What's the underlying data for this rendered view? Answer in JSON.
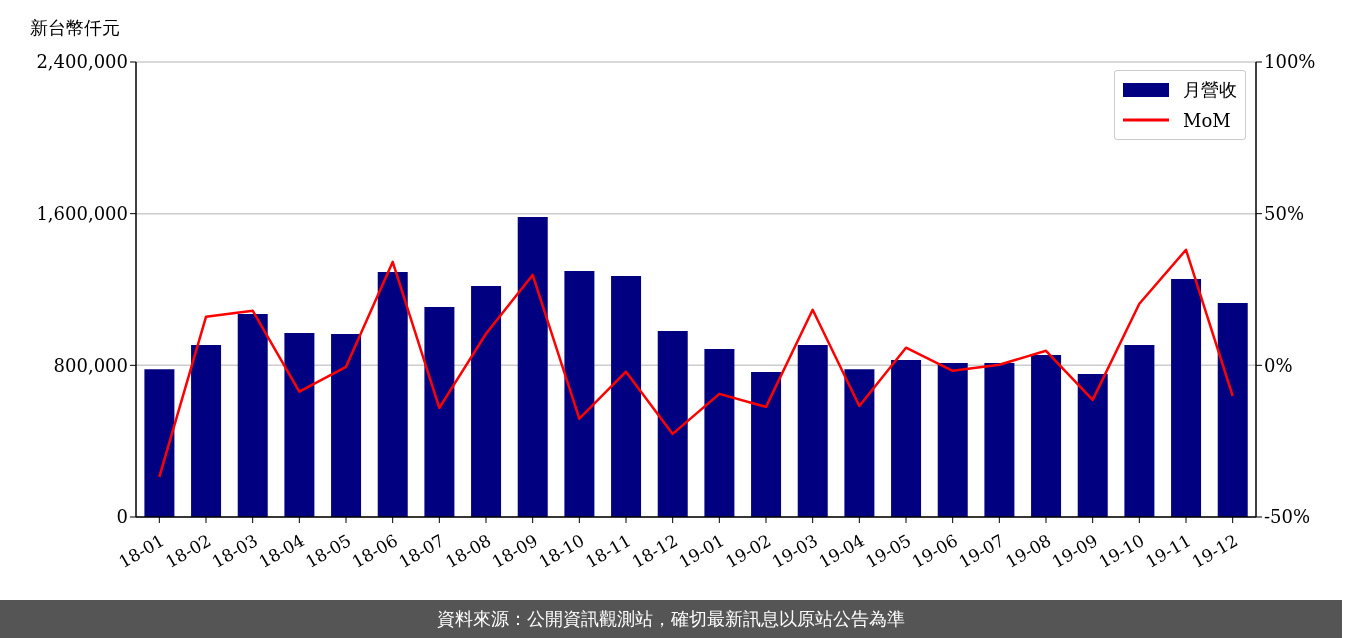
{
  "chart_data": {
    "type": "bar",
    "ylabel": "新台幣仟元",
    "categories": [
      "18-01",
      "18-02",
      "18-03",
      "18-04",
      "18-05",
      "18-06",
      "18-07",
      "18-08",
      "18-09",
      "18-10",
      "18-11",
      "18-12",
      "19-01",
      "19-02",
      "19-03",
      "19-04",
      "19-05",
      "19-06",
      "19-07",
      "19-08",
      "19-09",
      "19-10",
      "19-11",
      "19-12"
    ],
    "series": [
      {
        "name": "月營收",
        "color": "#000080",
        "values": [
          780000,
          907000,
          1071000,
          971000,
          965000,
          1292000,
          1108000,
          1218000,
          1583000,
          1298000,
          1271000,
          981000,
          886000,
          765000,
          907000,
          780000,
          828000,
          812000,
          812000,
          855000,
          754000,
          907000,
          1255000,
          1129000
        ]
      },
      {
        "name": "MoM",
        "type": "line",
        "axis": "y2",
        "color": "#ff0000",
        "values": [
          -36.8,
          16.0,
          18.0,
          -8.7,
          -0.5,
          34.1,
          -14.0,
          10.4,
          29.8,
          -17.6,
          -2.1,
          -22.6,
          -9.4,
          -13.7,
          18.3,
          -13.4,
          5.8,
          -1.8,
          0.2,
          4.8,
          -11.4,
          20.3,
          38.1,
          -10.1
        ]
      }
    ],
    "ylim": [
      0,
      2400000
    ],
    "yticks": [
      {
        "value": 0,
        "label": "0"
      },
      {
        "value": 800000,
        "label": "800,000"
      },
      {
        "value": 1600000,
        "label": "1,600,000"
      },
      {
        "value": 2400000,
        "label": "2,400,000"
      }
    ],
    "y2lim": [
      -50,
      100
    ],
    "y2ticks": [
      {
        "value": -50,
        "label": "-50%"
      },
      {
        "value": 0,
        "label": "0%"
      },
      {
        "value": 50,
        "label": "50%"
      },
      {
        "value": 100,
        "label": "100%"
      }
    ],
    "grid": "y",
    "legend": "top right",
    "marker": "none",
    "line_style": "solid",
    "annotations": [
      "資料來源：公開資訊觀測站，確切最新訊息以原站公告為準"
    ]
  }
}
